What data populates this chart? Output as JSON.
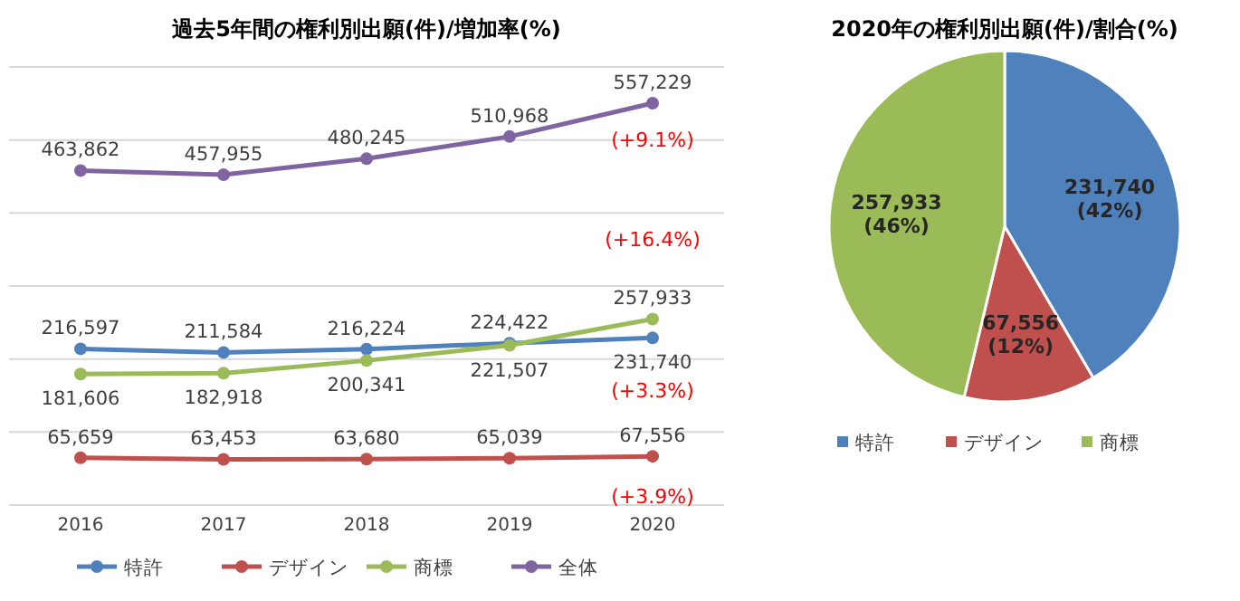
{
  "chart_data": [
    {
      "type": "line",
      "title": "過去5年間の権利別出願(件)/増加率(%)",
      "categories": [
        "2016",
        "2017",
        "2018",
        "2019",
        "2020"
      ],
      "series": [
        {
          "name": "特許",
          "color": "#4f81bd",
          "values": [
            216597,
            211584,
            216224,
            224422,
            231740
          ],
          "value_labels": [
            "216,597",
            "211,584",
            "216,224",
            "224,422",
            "231,740"
          ]
        },
        {
          "name": "デザイン",
          "color": "#c0504d",
          "values": [
            65659,
            63453,
            63680,
            65039,
            67556
          ],
          "value_labels": [
            "65,659",
            "63,453",
            "63,680",
            "65,039",
            "67,556"
          ]
        },
        {
          "name": "商標",
          "color": "#9bbb59",
          "values": [
            181606,
            182918,
            200341,
            221507,
            257933
          ],
          "value_labels": [
            "181,606",
            "182,918",
            "200,341",
            "221,507",
            "257,933"
          ]
        },
        {
          "name": "全体",
          "color": "#8064a2",
          "values": [
            463862,
            457955,
            480245,
            510968,
            557229
          ],
          "value_labels": [
            "463,862",
            "457,955",
            "480,245",
            "510,968",
            "557,229"
          ]
        }
      ],
      "grid": "y",
      "tick_labels": "x",
      "legend": "bottom",
      "marker": "circle",
      "line_style": "solid",
      "annotations": [
        "(+9.1%)",
        "(+16.4%)",
        "(+3.3%)",
        "(+3.9%)"
      ]
    },
    {
      "type": "pie",
      "title": "2020年の権利別出願(件)/割合(%)",
      "categories": [
        "特許",
        "デザイン",
        "商標"
      ],
      "values": [
        231740,
        67556,
        257933
      ],
      "colors": [
        "#4f81bd",
        "#c0504d",
        "#9bbb59"
      ],
      "value_labels": [
        "231,740 (42%)",
        "67,556 (12%)",
        "257,933 (46%)"
      ],
      "legend": "bottom"
    }
  ]
}
